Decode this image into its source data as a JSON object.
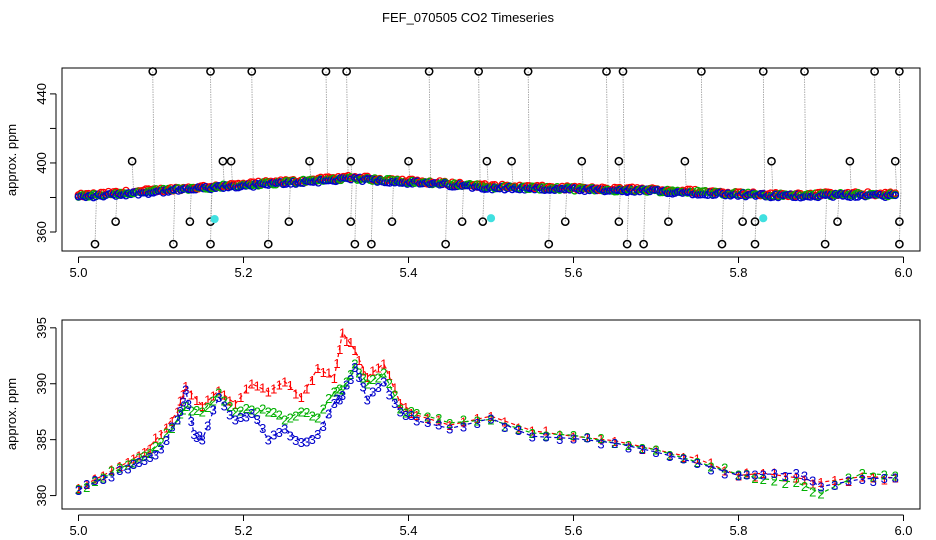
{
  "figure": {
    "title": "FEF_070505  CO2 Timeseries"
  },
  "colors": {
    "series1": "#ff0000",
    "series2": "#00b000",
    "series3": "#0000cc",
    "outlier": "#000000",
    "cyan_marker": "#40e0e0",
    "connector": "#999999"
  },
  "chart_data": [
    {
      "type": "scatter",
      "title": "",
      "xlabel": "",
      "ylabel": "approx. ppm",
      "xlim": [
        4.98,
        6.02
      ],
      "ylim": [
        349,
        455
      ],
      "xticks": [
        "5.0",
        "5.2",
        "5.4",
        "5.6",
        "5.8",
        "6.0"
      ],
      "yticks": [
        "360",
        "400",
        "440"
      ],
      "grid": false,
      "legend": "none",
      "segments": [
        {
          "x0": 5.0,
          "x1": 5.33,
          "y0": 380.5,
          "ymid": 386,
          "y1": 391
        },
        {
          "x0": 5.335,
          "x1": 5.665,
          "y0": 391,
          "ymid": 386,
          "y1": 384
        },
        {
          "x0": 5.665,
          "x1": 5.83,
          "y0": 384.5,
          "ymid": 383,
          "y1": 381.5
        },
        {
          "x0": 5.83,
          "x1": 5.99,
          "y0": 381,
          "ymid": 381.5,
          "y1": 381.5
        }
      ],
      "outliers_high": [
        5.09,
        5.16,
        5.21,
        5.3,
        5.325,
        5.425,
        5.485,
        5.545,
        5.64,
        5.66,
        5.755,
        5.83,
        5.88,
        5.965,
        5.995
      ],
      "outliers_mid": [
        5.065,
        5.175,
        5.185,
        5.28,
        5.33,
        5.4,
        5.495,
        5.525,
        5.61,
        5.655,
        5.735,
        5.84,
        5.935,
        5.99
      ],
      "outliers_low": [
        5.045,
        5.135,
        5.16,
        5.255,
        5.33,
        5.38,
        5.465,
        5.49,
        5.59,
        5.655,
        5.715,
        5.805,
        5.82,
        5.92,
        5.995
      ],
      "outliers_bottom": [
        5.02,
        5.115,
        5.16,
        5.23,
        5.335,
        5.355,
        5.445,
        5.57,
        5.665,
        5.685,
        5.78,
        5.82,
        5.905,
        5.995
      ],
      "outlier_values": {
        "high": 453,
        "mid": 401,
        "low": 366,
        "bottom": 353
      },
      "cyan_points": [
        {
          "x": 5.165,
          "y": 367.5
        },
        {
          "x": 5.5,
          "y": 368
        },
        {
          "x": 5.83,
          "y": 368
        }
      ]
    },
    {
      "type": "scatter",
      "title": "",
      "xlabel": "",
      "ylabel": "approx. ppm",
      "xlim": [
        4.98,
        6.02
      ],
      "ylim": [
        378.8,
        395.7
      ],
      "xticks": [
        "5.0",
        "5.2",
        "5.4",
        "5.6",
        "5.8",
        "6.0"
      ],
      "yticks": [
        "380",
        "385",
        "390",
        "395"
      ],
      "grid": false,
      "legend": "none",
      "point_labels": [
        "1",
        "2",
        "3"
      ],
      "series": [
        {
          "label": "1",
          "x": [
            5.0,
            5.03,
            5.06,
            5.08,
            5.1,
            5.12,
            5.13,
            5.15,
            5.17,
            5.19,
            5.21,
            5.23,
            5.25,
            5.27,
            5.29,
            5.31,
            5.32,
            5.335,
            5.35,
            5.37,
            5.39,
            5.41,
            5.45,
            5.5,
            5.55,
            5.6,
            5.65,
            5.7,
            5.75,
            5.8,
            5.83,
            5.87,
            5.9,
            5.95,
            5.99
          ],
          "values": [
            380.7,
            381.8,
            383.0,
            383.9,
            385.5,
            387.5,
            389.8,
            388.0,
            389.4,
            388.2,
            390.0,
            389.3,
            390.2,
            388.8,
            391.4,
            390.5,
            394.6,
            393.0,
            390.6,
            391.8,
            388.3,
            387.2,
            386.3,
            387.1,
            385.8,
            385.3,
            384.9,
            384.1,
            383.3,
            381.8,
            382.0,
            381.6,
            381.2,
            381.7,
            381.6
          ]
        },
        {
          "label": "2",
          "x": [
            5.0,
            5.03,
            5.06,
            5.08,
            5.1,
            5.12,
            5.13,
            5.15,
            5.17,
            5.19,
            5.21,
            5.23,
            5.25,
            5.27,
            5.29,
            5.31,
            5.32,
            5.335,
            5.35,
            5.37,
            5.39,
            5.41,
            5.45,
            5.5,
            5.55,
            5.6,
            5.65,
            5.7,
            5.75,
            5.8,
            5.83,
            5.87,
            5.9,
            5.95,
            5.99
          ],
          "values": [
            380.6,
            381.6,
            382.8,
            383.6,
            384.8,
            386.8,
            388.0,
            387.5,
            389.2,
            387.5,
            387.7,
            387.5,
            386.8,
            387.5,
            387.0,
            389.3,
            389.5,
            391.8,
            390.0,
            391.0,
            387.8,
            387.4,
            386.5,
            386.8,
            385.6,
            385.4,
            384.7,
            384.1,
            383.0,
            381.9,
            381.5,
            381.2,
            380.2,
            382.0,
            381.8
          ]
        },
        {
          "label": "3",
          "x": [
            5.0,
            5.03,
            5.06,
            5.08,
            5.1,
            5.12,
            5.13,
            5.14,
            5.15,
            5.17,
            5.19,
            5.21,
            5.23,
            5.25,
            5.27,
            5.29,
            5.31,
            5.32,
            5.335,
            5.35,
            5.37,
            5.39,
            5.41,
            5.45,
            5.5,
            5.55,
            5.6,
            5.65,
            5.7,
            5.75,
            5.8,
            5.83,
            5.87,
            5.9,
            5.95,
            5.99
          ],
          "values": [
            380.5,
            381.5,
            382.4,
            383.2,
            384.2,
            386.8,
            389.5,
            385.5,
            385.0,
            388.8,
            386.8,
            387.4,
            385.0,
            386.0,
            384.8,
            385.5,
            388.3,
            389.0,
            391.5,
            388.6,
            390.2,
            387.5,
            386.7,
            386.0,
            386.9,
            385.3,
            385.1,
            384.7,
            383.9,
            382.9,
            381.8,
            381.9,
            382.0,
            380.8,
            381.5,
            381.6
          ]
        }
      ]
    }
  ]
}
